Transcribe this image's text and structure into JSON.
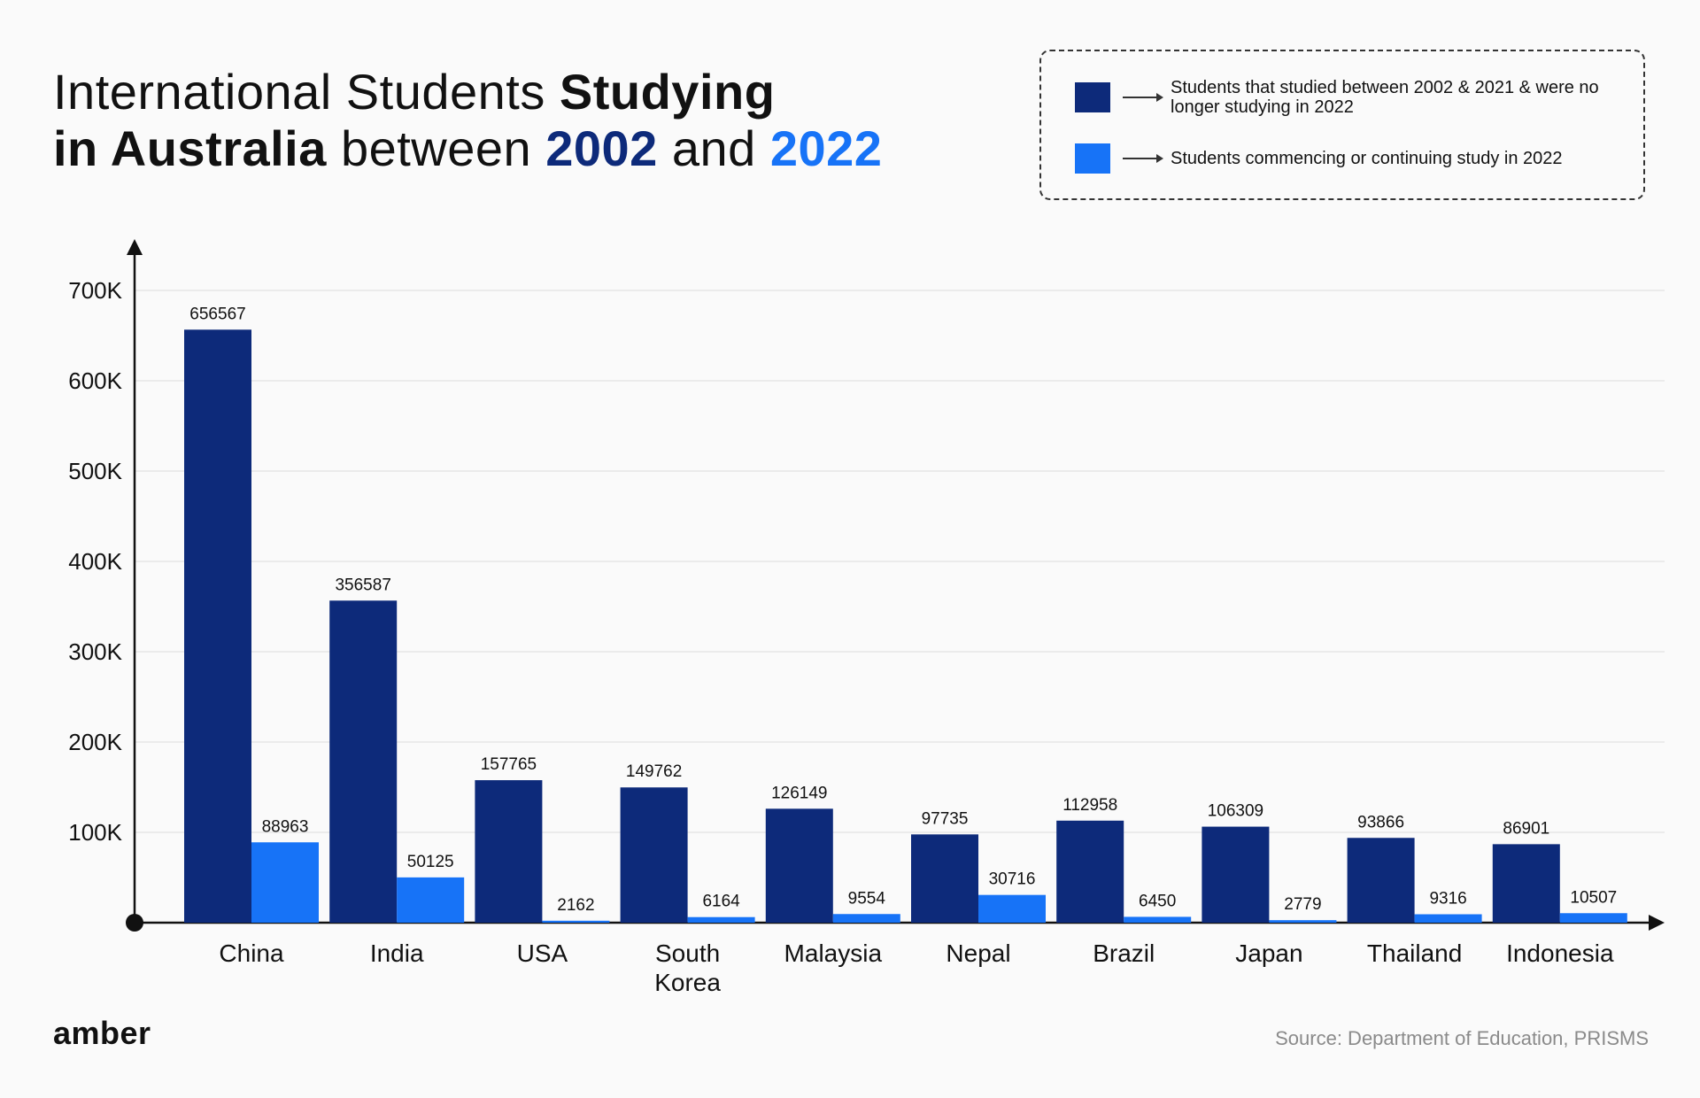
{
  "title": {
    "l1_a": "International Students ",
    "l1_b": "Studying",
    "l2_a": "in Australia",
    "l2_b": " between ",
    "year1": "2002",
    "l2_c": " and ",
    "year2": "2022"
  },
  "legend": {
    "item1": "Students that studied between 2002 & 2021 & were no longer studying in 2022",
    "item2": "Students commencing or continuing study in 2022"
  },
  "brand": "amber",
  "source": "Source: Department of Education, PRISMS",
  "colors": {
    "dark": "#0d2a7a",
    "bright": "#1773f7"
  },
  "chart_data": {
    "type": "bar",
    "categories": [
      "China",
      "India",
      "USA",
      "South Korea",
      "Malaysia",
      "Nepal",
      "Brazil",
      "Japan",
      "Thailand",
      "Indonesia"
    ],
    "series": [
      {
        "name": "Students that studied between 2002 & 2021 & were no longer studying in 2022",
        "values": [
          656567,
          356587,
          157765,
          149762,
          126149,
          97735,
          112958,
          106309,
          93866,
          86901
        ]
      },
      {
        "name": "Students commencing or continuing study in 2022",
        "values": [
          88963,
          50125,
          2162,
          6164,
          9554,
          30716,
          6450,
          2779,
          9316,
          10507
        ]
      }
    ],
    "yticks": [
      "100K",
      "200K",
      "300K",
      "400K",
      "500K",
      "600K",
      "700K"
    ],
    "ylim": [
      0,
      700000
    ],
    "grid": true
  }
}
